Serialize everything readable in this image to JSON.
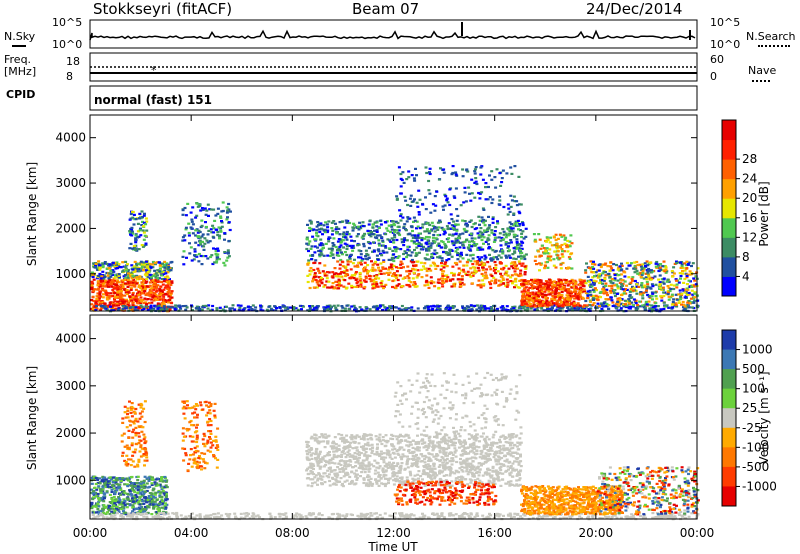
{
  "header": {
    "station": "Stokkseyri (fitACF)",
    "beam": "Beam 07",
    "date": "24/Dec/2014"
  },
  "noise_panel": {
    "left_label": "N.Sky",
    "right_label": "N.Search",
    "ticks_left": [
      "10^5",
      "10^0"
    ],
    "ticks_right": [
      "10^5",
      "10^0"
    ]
  },
  "freq_panel": {
    "left_label_line1": "Freq.",
    "left_label_line2": "[MHz]",
    "ticks_left": [
      "18",
      "8"
    ],
    "ticks_right": [
      "60",
      "0"
    ],
    "right_label": "Nave"
  },
  "cpid_panel": {
    "label": "CPID",
    "value": "normal (fast) 151"
  },
  "chart_data": [
    {
      "type": "heatmap",
      "name": "power",
      "ylabel": "Slant Range [km]",
      "yticks": [
        "1000",
        "2000",
        "3000",
        "4000"
      ],
      "ylim": [
        180,
        4500
      ],
      "xlim": [
        "00:00",
        "24:00"
      ],
      "colorbar_label": "Power [dB]",
      "colorbar_ticks": [
        "4",
        "8",
        "12",
        "16",
        "20",
        "24",
        "28"
      ],
      "colors": [
        "#0000ff",
        "#2050a0",
        "#3c8c64",
        "#50c850",
        "#e6e600",
        "#ffa000",
        "#ff6000",
        "#ff2000",
        "#e60000"
      ]
    },
    {
      "type": "heatmap",
      "name": "velocity",
      "ylabel": "Slant Range [km]",
      "yticks": [
        "1000",
        "2000",
        "3000",
        "4000"
      ],
      "ylim": [
        180,
        4500
      ],
      "xlim": [
        "00:00",
        "24:00"
      ],
      "colorbar_label": "Velocity [m s⁻¹]",
      "colorbar_ticks": [
        "1000",
        "500",
        "100",
        "25",
        "-25",
        "-100",
        "-500",
        "-1000"
      ],
      "colors": [
        "#1e3caa",
        "#3c78b4",
        "#50a050",
        "#6cd23c",
        "#c8c8c0",
        "#ffaa00",
        "#ff7800",
        "#ff3c00",
        "#e60000"
      ]
    }
  ],
  "xaxis": {
    "ticks": [
      "00:00",
      "04:00",
      "08:00",
      "12:00",
      "16:00",
      "20:00",
      "00:00"
    ],
    "label": "Time UT"
  }
}
